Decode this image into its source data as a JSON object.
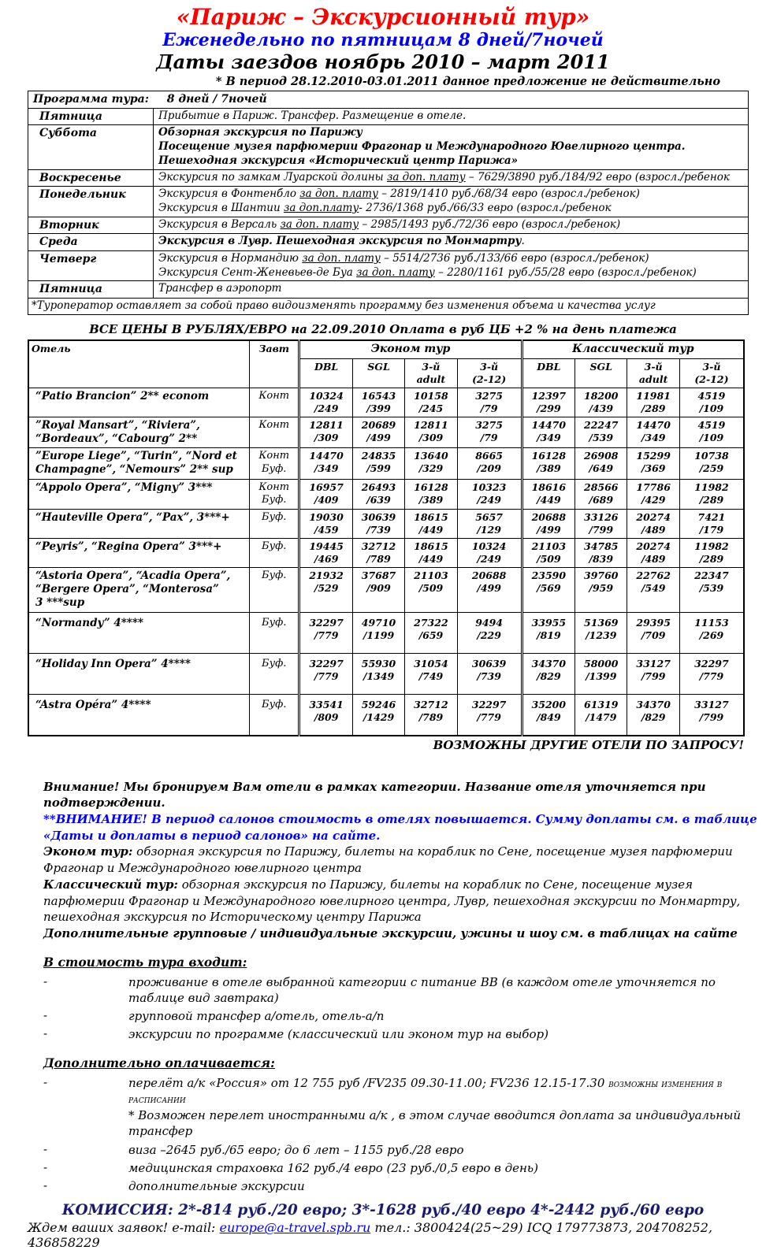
{
  "colors": {
    "title": "#ff0000",
    "subtitle": "#0000ff",
    "attention_blue": "#0000ff",
    "commission": "#191970",
    "link_blue": "#0000ff"
  },
  "header": {
    "title": "«Париж – Экскурсионный тур»",
    "subtitle": "Еженедельно по пятницам 8 дней/7ночей",
    "dates_line": "Даты заездов ноябрь 2010 – март 2011",
    "note": "* В период 28.12.2010-03.01.2011 данное предложение не действительно"
  },
  "program_table": {
    "header_label": "Программа тура:",
    "header_value": "8  дней / 7ночей",
    "rows": [
      {
        "day": "Пятница",
        "lines": [
          [
            {
              "t": "Прибытие в Париж. Трансфер. Размещение в отеле."
            }
          ]
        ]
      },
      {
        "day": "Суббота",
        "lines": [
          [
            {
              "t": "Обзорная экскурсия по Парижу",
              "b": true
            }
          ],
          [
            {
              "t": "Посещение музея парфюмерии Фрагонар и Международного Ювелирного центра.",
              "b": true
            }
          ],
          [
            {
              "t": "Пешеходная экскурсия «Исторический центр Парижа»",
              "b": true
            }
          ]
        ]
      },
      {
        "day": "Воскресенье",
        "lines": [
          [
            {
              "t": "Экскурсия по замкам Луарской долины "
            },
            {
              "t": "за доп. плату",
              "u": true
            },
            {
              "t": "  – 7629/3890 руб./184/92 евро (взросл./ребенок"
            }
          ]
        ]
      },
      {
        "day": "Понедельник",
        "lines": [
          [
            {
              "t": "Экскурсия в Фонтенбло "
            },
            {
              "t": "за доп. плату",
              "u": true
            },
            {
              "t": "  – 2819/1410 руб./68/34 евро (взросл./ребенок)"
            }
          ],
          [
            {
              "t": "Экскурсия в Шантии "
            },
            {
              "t": "за доп.плату",
              "u": true
            },
            {
              "t": "-  2736/1368 руб./66/33 евро (взросл./ребенок"
            }
          ]
        ]
      },
      {
        "day": "Вторник",
        "lines": [
          [
            {
              "t": "Экскурсия в Версаль "
            },
            {
              "t": "за доп. плату",
              "u": true
            },
            {
              "t": "  – 2985/1493 руб./72/36 евро (взросл./ребенок)"
            }
          ]
        ]
      },
      {
        "day": "Среда",
        "lines": [
          [
            {
              "t": "Экскурсия в Лувр. Пешеходная экскурсия по Монмартру",
              "b": true
            },
            {
              "t": "."
            }
          ]
        ]
      },
      {
        "day": "Четверг",
        "lines": [
          [
            {
              "t": "Экскурсия в Нормандию "
            },
            {
              "t": "за доп. плату",
              "u": true
            },
            {
              "t": "  – 5514/2736 руб./133/66 евро (взросл./ребенок)"
            }
          ],
          [
            {
              "t": "Экскурсия Сент-Женевьев-де Буа "
            },
            {
              "t": "за доп. плату",
              "u": true
            },
            {
              "t": "  – 2280/1161 руб./55/28 евро (взросл./ребенок)"
            }
          ]
        ]
      },
      {
        "day": "Пятница",
        "lines": [
          [
            {
              "t": "Трансфер в аэропорт"
            }
          ]
        ]
      }
    ],
    "footnote": "*Туроператор оставляет за собой право видоизменять программу без изменения объема и качества услуг"
  },
  "price_caption": "ВСЕ ЦЕНЫ В РУБЛЯХ/ЕВРО на 22.09.2010 Оплата в руб ЦБ +2 % на день платежа",
  "price_table": {
    "hotel_col": "Отель",
    "breakfast_col": "Завт",
    "groups": [
      "Эконом тур",
      "Классический тур"
    ],
    "subcols": [
      [
        "DBL"
      ],
      [
        "SGL"
      ],
      [
        "3-й",
        "adult"
      ],
      [
        "3-й",
        "(2-12)"
      ]
    ],
    "rows": [
      {
        "name": [
          "“Patio Brancion” 2** econom"
        ],
        "bf": [
          "Конт"
        ],
        "prices": [
          [
            "10324",
            "/249"
          ],
          [
            "16543",
            "/399"
          ],
          [
            "10158",
            "/245"
          ],
          [
            "3275",
            "/79"
          ],
          [
            "12397",
            "/299"
          ],
          [
            "18200",
            "/439"
          ],
          [
            "11981",
            "/289"
          ],
          [
            "4519",
            "/109"
          ]
        ]
      },
      {
        "name": [
          "”Royal Mansart”, “Riviera”,",
          "“Bordeaux”, “Cabourg”  2**"
        ],
        "bf": [
          "Конт"
        ],
        "prices": [
          [
            "12811",
            "/309"
          ],
          [
            "20689",
            "/499"
          ],
          [
            "12811",
            "/309"
          ],
          [
            "3275",
            "/79"
          ],
          [
            "14470",
            "/349"
          ],
          [
            "22247",
            "/539"
          ],
          [
            "14470",
            "/349"
          ],
          [
            "4519",
            "/109"
          ]
        ]
      },
      {
        "name": [
          "”Europe Liege”, “Turin”, “Nord et",
          "Champagne”, “Nemours” 2** sup"
        ],
        "bf": [
          "Конт",
          "Буф."
        ],
        "prices": [
          [
            "14470",
            "/349"
          ],
          [
            "24835",
            "/599"
          ],
          [
            "13640",
            "/329"
          ],
          [
            "8665",
            "/209"
          ],
          [
            "16128",
            "/389"
          ],
          [
            "26908",
            "/649"
          ],
          [
            "15299",
            "/369"
          ],
          [
            "10738",
            "/259"
          ]
        ]
      },
      {
        "name": [
          "“Appolo Opera”, “Migny”  3***"
        ],
        "bf": [
          "Конт",
          "Буф."
        ],
        "prices": [
          [
            "16957",
            "/409"
          ],
          [
            "26493",
            "/639"
          ],
          [
            "16128",
            "/389"
          ],
          [
            "10323",
            "/249"
          ],
          [
            "18616",
            "/449"
          ],
          [
            "28566",
            "/689"
          ],
          [
            "17786",
            "/429"
          ],
          [
            "11982",
            "/289"
          ]
        ]
      },
      {
        "name": [
          "“Hauteville Opera”, “Pax”,  3***+"
        ],
        "bf": [
          "Буф."
        ],
        "prices": [
          [
            "19030",
            "/459"
          ],
          [
            "30639",
            "/739"
          ],
          [
            "18615",
            "/449"
          ],
          [
            "5657",
            "/129"
          ],
          [
            "20688",
            "/499"
          ],
          [
            "33126",
            "/799"
          ],
          [
            "20274",
            "/489"
          ],
          [
            "7421",
            "/179"
          ]
        ]
      },
      {
        "name": [
          "“Peyris”,  “Regina Opera”   3***+"
        ],
        "bf": [
          "Буф."
        ],
        "prices": [
          [
            "19445",
            "/469"
          ],
          [
            "32712",
            "/789"
          ],
          [
            "18615",
            "/449"
          ],
          [
            "10324",
            "/249"
          ],
          [
            "21103",
            "/509"
          ],
          [
            "34785",
            "/839"
          ],
          [
            "20274",
            "/489"
          ],
          [
            "11982",
            "/289"
          ]
        ]
      },
      {
        "name": [
          "“Astoria Opera”, “Acadia Opera”,",
          "“Bergere Opera”, “Monterosa”",
          "3 ***sup"
        ],
        "bf": [
          "Буф."
        ],
        "prices": [
          [
            "21932",
            "/529"
          ],
          [
            "37687",
            "/909"
          ],
          [
            "21103",
            "/509"
          ],
          [
            "20688",
            "/499"
          ],
          [
            "23590",
            "/569"
          ],
          [
            "39760",
            "/959"
          ],
          [
            "22762",
            "/549"
          ],
          [
            "22347",
            "/539"
          ]
        ]
      },
      {
        "name": [
          "“Normandy” 4****"
        ],
        "bf": [
          "Буф."
        ],
        "prices": [
          [
            "32297",
            "/779"
          ],
          [
            "49710",
            "/1199"
          ],
          [
            "27322",
            "/659"
          ],
          [
            "9494",
            "/229"
          ],
          [
            "33955",
            "/819"
          ],
          [
            "51369",
            "/1239"
          ],
          [
            "29395",
            "/709"
          ],
          [
            "11153",
            "/269"
          ]
        ]
      },
      {
        "name": [
          "“Holiday Inn Opera”  4****"
        ],
        "bf": [
          "Буф."
        ],
        "prices": [
          [
            "32297",
            "/779"
          ],
          [
            "55930",
            "/1349"
          ],
          [
            "31054",
            "/749"
          ],
          [
            "30639",
            "/739"
          ],
          [
            "34370",
            "/829"
          ],
          [
            "58000",
            "/1399"
          ],
          [
            "33127",
            "/799"
          ],
          [
            "32297",
            "/779"
          ]
        ]
      },
      {
        "name": [
          "“Astra Opéra” 4****"
        ],
        "bf": [
          "Буф."
        ],
        "prices": [
          [
            "33541",
            "/809"
          ],
          [
            "59246",
            "/1429"
          ],
          [
            "32712",
            "/789"
          ],
          [
            "32297",
            "/779"
          ],
          [
            "35200",
            "/849"
          ],
          [
            "61319",
            "/1479"
          ],
          [
            "34370",
            "/829"
          ],
          [
            "33127",
            "/799"
          ]
        ]
      }
    ]
  },
  "after_table": "ВОЗМОЖНЫ ДРУГИЕ ОТЕЛИ ПО ЗАПРОСУ!",
  "notes": [
    {
      "style": "bold",
      "text": "Внимание! Мы бронируем Вам отели в рамках категории. Название отеля уточняется при подтверждении."
    },
    {
      "style": "blue",
      "text": "**ВНИМАНИЕ! В период салонов стоимость в отелях повышается. Сумму доплаты см. в таблице «Даты и доплаты в период салонов» на сайте."
    },
    {
      "style": "lead",
      "lead": "Эконом тур:",
      "text": " обзорная экскурсия по Парижу, билеты на кораблик по Сене, посещение музея парфюмерии Фрагонар и Международного ювелирного центра"
    },
    {
      "style": "lead",
      "lead": "Классический тур:",
      "text": "  обзорная экскурсия по Парижу, билеты на кораблик по Сене, посещение музея парфюмерии Фрагонар и Международного ювелирного центра, Лувр, пешеходная экскурсии по Монмартру, пешеходная экскурсия по Историческому центру Парижа"
    },
    {
      "style": "bold",
      "text": "Дополнительные групповые / индивидуальные экскурсии,  ужины и шоу см. в таблицах на сайте"
    }
  ],
  "included": {
    "title": "В стоимость тура входит:",
    "items": [
      {
        "text": "проживание в отеле выбранной категории с питание BB (в каждом отеле уточняется по таблице вид завтрака)"
      },
      {
        "text": "групповой трансфер а/отель, отель-а/п"
      },
      {
        "text": "экскурсии по программе (классический или эконом тур на выбор)"
      }
    ]
  },
  "paid_extra": {
    "title": "Дополнительно оплачивается:",
    "items": [
      {
        "text": "перелёт а/к «Россия» от 12 755 руб /FV235 09.30-11.00;  FV236 12.15-17.30 ",
        "tail": "возможны изменения в расписании",
        "sub": "* Возможен перелет иностранными а/к ,  в этом случае вводится доплата за индивидуальный трансфер"
      },
      {
        "text": "виза –2645 руб./65 евро;  до  6 лет – 1155  руб./28 евро"
      },
      {
        "text": "медицинская страховка 162 руб./4 евро (23 руб./0,5 евро в день)"
      },
      {
        "text": "дополнительные экскурсии"
      }
    ]
  },
  "commission": {
    "label": "КОМИССИЯ:",
    "text": "  2*-814 руб./20 евро; 3*-1628 руб./40 евро  4*-2442 руб./60 евро"
  },
  "footer": {
    "pre": "Ждем ваших заявок! e-mail: ",
    "email": "europe@a-travel.spb.ru",
    "post": " тел.: 3800424(25~29) ICQ 179773873, 204708252, 436858229"
  }
}
